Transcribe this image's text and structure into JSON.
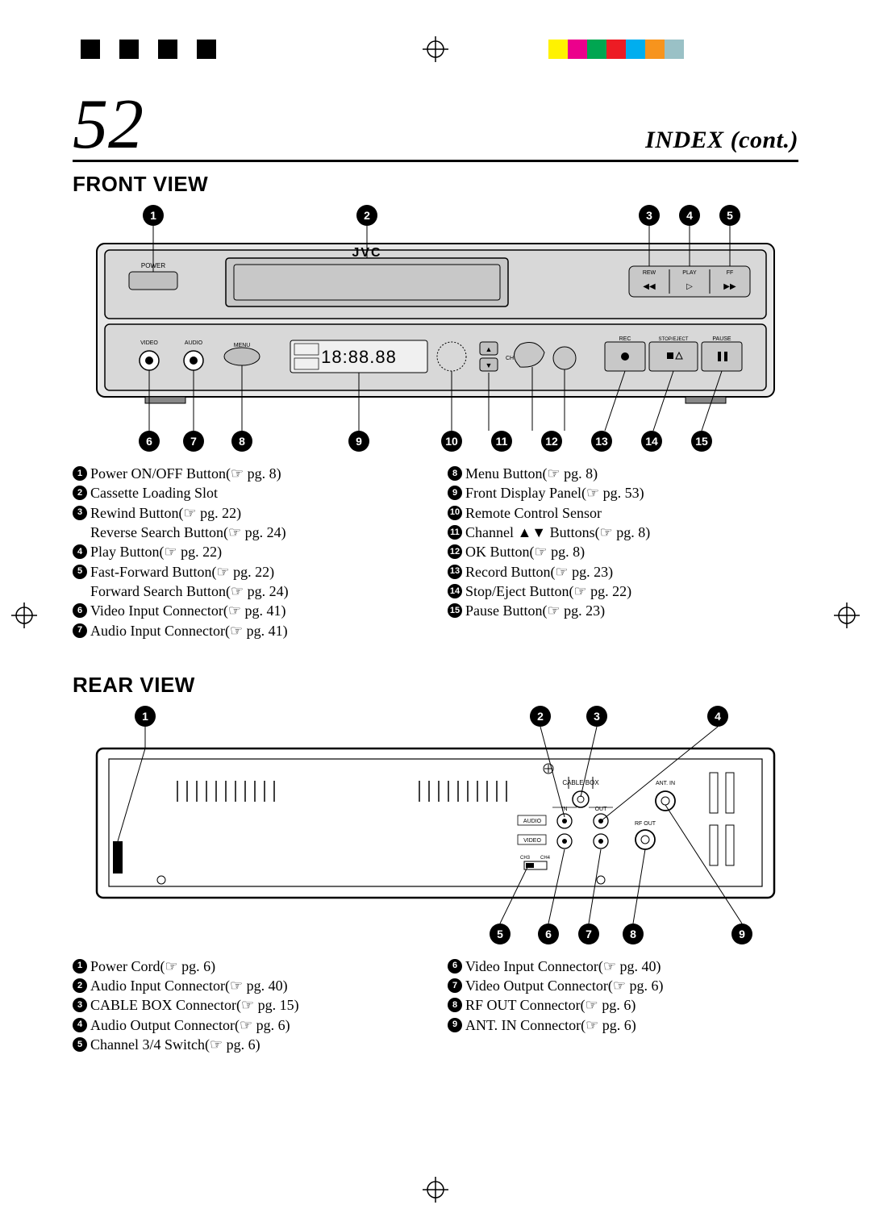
{
  "page_number": "52",
  "header_title": "INDEX (cont.)",
  "color_bars": {
    "left": [
      "#000000",
      "#ffffff",
      "#000000",
      "#ffffff",
      "#000000",
      "#ffffff",
      "#000000"
    ],
    "right": [
      "#fff200",
      "#ec008c",
      "#00a651",
      "#ed1c24",
      "#00aeef",
      "#f7941d",
      "#9ac1c6"
    ]
  },
  "front": {
    "title": "FRONT VIEW",
    "brand": "JVC",
    "top_callouts": [
      "1",
      "2",
      "3",
      "4",
      "5"
    ],
    "bottom_callouts": [
      "6",
      "7",
      "8",
      "9",
      "10",
      "11",
      "12",
      "13",
      "14",
      "15"
    ],
    "panel_labels": {
      "power": "POWER",
      "video": "VIDEO",
      "audio": "AUDIO",
      "menu": "MENU",
      "rec": "REC",
      "stop_eject": "STOP/EJECT",
      "pause": "PAUSE",
      "rew": "REW",
      "play": "PLAY",
      "ff": "FF/➤➤",
      "display": "18:88.88",
      "ch": "CH"
    },
    "legend_left": [
      {
        "n": "1",
        "text": "Power ON/OFF Button ",
        "ref": "pg. 8"
      },
      {
        "n": "2",
        "text": "Cassette Loading Slot"
      },
      {
        "n": "3",
        "text": "Rewind Button ",
        "ref": "pg. 22"
      },
      {
        "indent": true,
        "text": "Reverse Search Button ",
        "ref": "pg. 24"
      },
      {
        "n": "4",
        "text": "Play Button ",
        "ref": "pg. 22"
      },
      {
        "n": "5",
        "text": "Fast-Forward Button ",
        "ref": "pg. 22"
      },
      {
        "indent": true,
        "text": "Forward Search Button ",
        "ref": "pg. 24"
      },
      {
        "n": "6",
        "text": "Video Input Connector ",
        "ref": "pg. 41"
      },
      {
        "n": "7",
        "text": "Audio Input Connector ",
        "ref": "pg. 41"
      }
    ],
    "legend_right": [
      {
        "n": "8",
        "text": "Menu Button ",
        "ref": "pg. 8"
      },
      {
        "n": "9",
        "text": "Front Display Panel ",
        "ref": "pg. 53"
      },
      {
        "n": "10",
        "text": "Remote Control Sensor"
      },
      {
        "n": "11",
        "text": "Channel ▲▼ Buttons ",
        "ref": "pg. 8"
      },
      {
        "n": "12",
        "text": "OK Button ",
        "ref": "pg. 8"
      },
      {
        "n": "13",
        "text": "Record Button ",
        "ref": "pg. 23"
      },
      {
        "n": "14",
        "text": "Stop/Eject Button ",
        "ref": "pg. 22"
      },
      {
        "n": "15",
        "text": "Pause Button ",
        "ref": "pg. 23"
      }
    ]
  },
  "rear": {
    "title": "REAR VIEW",
    "top_callouts": [
      "1",
      "2",
      "3",
      "4"
    ],
    "bottom_callouts": [
      "5",
      "6",
      "7",
      "8",
      "9"
    ],
    "panel_labels": {
      "cable_box": "CABLE BOX",
      "ant_in": "ANT. IN",
      "audio": "AUDIO",
      "video": "VIDEO",
      "in": "IN",
      "out": "OUT",
      "rf_out": "RF OUT",
      "ch3": "CH3",
      "ch4": "CH4"
    },
    "legend_left": [
      {
        "n": "1",
        "text": "Power Cord ",
        "ref": "pg. 6"
      },
      {
        "n": "2",
        "text": "Audio Input Connector ",
        "ref": "pg. 40"
      },
      {
        "n": "3",
        "text": "CABLE BOX Connector ",
        "ref": "pg. 15"
      },
      {
        "n": "4",
        "text": "Audio Output Connector ",
        "ref": "pg. 6"
      },
      {
        "n": "5",
        "text": "Channel 3/4 Switch ",
        "ref": "pg. 6"
      }
    ],
    "legend_right": [
      {
        "n": "6",
        "text": "Video Input Connector ",
        "ref": "pg. 40"
      },
      {
        "n": "7",
        "text": "Video Output Connector ",
        "ref": "pg. 6"
      },
      {
        "n": "8",
        "text": "RF OUT Connector ",
        "ref": "pg. 6"
      },
      {
        "n": "9",
        "text": "ANT. IN Connector ",
        "ref": "pg. 6"
      }
    ]
  }
}
